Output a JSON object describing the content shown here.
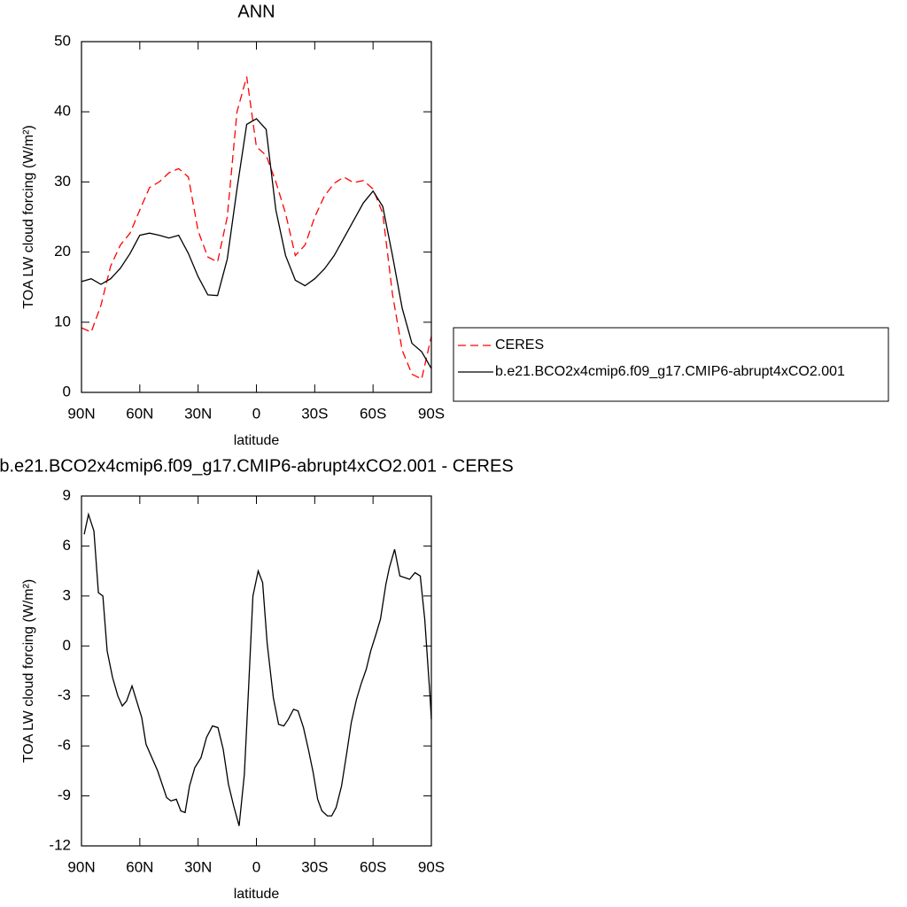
{
  "chart_data": [
    {
      "type": "line",
      "title": "ANN",
      "xlabel": "latitude",
      "ylabel": "TOA LW cloud forcing (W/m²)",
      "x": [
        90,
        85,
        80,
        75,
        70,
        65,
        60,
        55,
        50,
        45,
        40,
        35,
        30,
        25,
        20,
        15,
        10,
        5,
        0,
        -5,
        -10,
        -15,
        -20,
        -25,
        -30,
        -35,
        -40,
        -45,
        -50,
        -55,
        -60,
        -65,
        -70,
        -75,
        -80,
        -85,
        -90
      ],
      "series": [
        {
          "name": "CERES",
          "color": "#ff0000",
          "style": "dashed",
          "values": [
            9.2,
            8.6,
            12.4,
            18,
            21,
            22.7,
            26,
            29.2,
            30,
            31.3,
            31.9,
            30.7,
            23,
            19.3,
            18.6,
            25,
            40,
            45,
            35,
            33.8,
            30,
            25.5,
            19.5,
            21,
            25,
            28,
            29.8,
            30.7,
            29.9,
            30.2,
            29,
            25.5,
            14,
            6,
            2.6,
            1.9,
            8
          ]
        },
        {
          "name": "b.e21.BCO2x4cmip6.f09_g17.CMIP6-abrupt4xCO2.001",
          "color": "#000000",
          "style": "solid",
          "values": [
            15.8,
            16.2,
            15.4,
            16.2,
            17.7,
            19.8,
            22.4,
            22.7,
            22.4,
            22.0,
            22.4,
            19.8,
            16.5,
            13.9,
            13.8,
            19,
            29,
            38.2,
            39.0,
            37.5,
            26,
            19.5,
            16,
            15.2,
            16.2,
            17.6,
            19.5,
            22,
            24.5,
            27,
            28.7,
            26.5,
            19.5,
            12,
            7,
            5.8,
            3.4
          ]
        }
      ],
      "xlim": [
        90,
        -90
      ],
      "xticks": [
        {
          "value": 90,
          "label": "90N"
        },
        {
          "value": 60,
          "label": "60N"
        },
        {
          "value": 30,
          "label": "30N"
        },
        0,
        {
          "value": -30,
          "label": "30S"
        },
        {
          "value": -60,
          "label": "60S"
        },
        {
          "value": -90,
          "label": "90S"
        }
      ],
      "ylim": [
        0,
        50
      ],
      "yticks": [
        0,
        10,
        20,
        30,
        40,
        50
      ],
      "legend": "right"
    },
    {
      "type": "line",
      "title": "b.e21.BCO2x4cmip6.f09_g17.CMIP6-abrupt4xCO2.001 - CERES",
      "xlabel": "latitude",
      "ylabel": "TOA LW cloud forcing (W/m²)",
      "x": [
        88.6,
        86.4,
        83.6,
        81.3,
        79,
        76.8,
        74,
        71.3,
        69,
        66.8,
        64,
        59,
        56.8,
        50.8,
        46.2,
        44,
        41.2,
        38.9,
        36.7,
        34.4,
        31.7,
        28.5,
        25.7,
        22.6,
        19.8,
        17.1,
        14.4,
        11.7,
        8.9,
        6.2,
        3.9,
        1.8,
        -0.9,
        -3.2,
        -5.5,
        -8.7,
        -11.4,
        -14.1,
        -16.4,
        -19.1,
        -21.4,
        -24.2,
        -26.9,
        -29.2,
        -31.5,
        -33.7,
        -36.5,
        -38.7,
        -41,
        -43.8,
        -46.5,
        -48.8,
        -51.5,
        -53.8,
        -56.5,
        -58.8,
        -61.5,
        -63.8,
        -66.6,
        -68.4,
        -71.1,
        -73.8,
        -78.8,
        -81.6,
        -84.3,
        -86.6,
        -89.3,
        -90
      ],
      "values": [
        6.7,
        7.9,
        6.9,
        3.2,
        3.0,
        -0.3,
        -1.9,
        -3.0,
        -3.6,
        -3.3,
        -2.4,
        -4.3,
        -5.9,
        -7.5,
        -9.1,
        -9.3,
        -9.2,
        -9.9,
        -10.0,
        -8.4,
        -7.3,
        -6.7,
        -5.5,
        -4.8,
        -4.9,
        -6.2,
        -8.3,
        -9.6,
        -10.8,
        -7.7,
        -2.2,
        3.0,
        4.5,
        3.8,
        0.2,
        -3.1,
        -4.7,
        -4.8,
        -4.4,
        -3.8,
        -3.9,
        -4.9,
        -6.3,
        -7.6,
        -9.2,
        -9.9,
        -10.2,
        -10.2,
        -9.7,
        -8.4,
        -6.4,
        -4.6,
        -3.2,
        -2.3,
        -1.4,
        -0.3,
        0.7,
        1.6,
        3.7,
        4.7,
        5.8,
        4.2,
        4.0,
        4.4,
        4.2,
        1.6,
        -3.0,
        -4.4
      ],
      "color": "#000000",
      "xlim": [
        90,
        -90
      ],
      "xticks": [
        {
          "value": 90,
          "label": "90N"
        },
        {
          "value": 60,
          "label": "60N"
        },
        {
          "value": 30,
          "label": "30N"
        },
        0,
        {
          "value": -30,
          "label": "30S"
        },
        {
          "value": -60,
          "label": "60S"
        },
        {
          "value": -90,
          "label": "90S"
        }
      ],
      "ylim": [
        -12,
        9
      ],
      "yticks": [
        -12,
        -9,
        -6,
        -3,
        0,
        3,
        6,
        9
      ]
    }
  ]
}
